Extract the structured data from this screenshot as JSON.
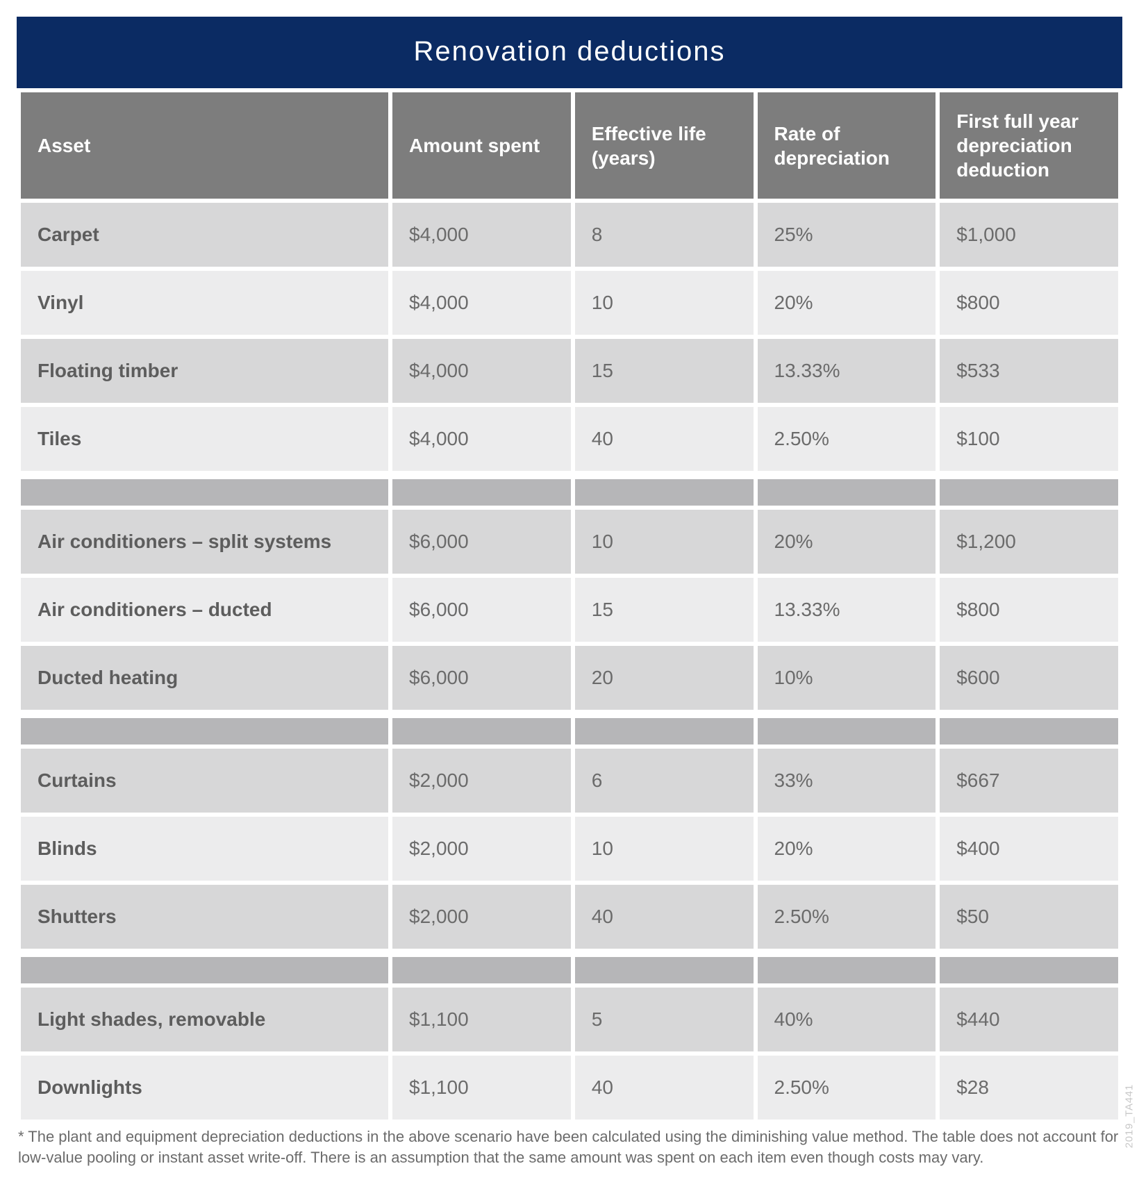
{
  "title": "Renovation deductions",
  "columns": [
    "Asset",
    "Amount spent",
    "Effective life (years)",
    "Rate of depreciation",
    "First full year depreciation deduction"
  ],
  "rows": [
    {
      "type": "data",
      "shade": "a",
      "cells": [
        "Carpet",
        "$4,000",
        "8",
        "25%",
        "$1,000"
      ]
    },
    {
      "type": "data",
      "shade": "b",
      "cells": [
        "Vinyl",
        "$4,000",
        "10",
        "20%",
        "$800"
      ]
    },
    {
      "type": "data",
      "shade": "a",
      "cells": [
        "Floating timber",
        "$4,000",
        "15",
        "13.33%",
        "$533"
      ]
    },
    {
      "type": "data",
      "shade": "b",
      "cells": [
        "Tiles",
        "$4,000",
        "40",
        "2.50%",
        "$100"
      ]
    },
    {
      "type": "separator"
    },
    {
      "type": "data",
      "shade": "a",
      "cells": [
        "Air conditioners – split systems",
        "$6,000",
        "10",
        "20%",
        "$1,200"
      ]
    },
    {
      "type": "data",
      "shade": "b",
      "cells": [
        "Air conditioners – ducted",
        "$6,000",
        "15",
        "13.33%",
        "$800"
      ]
    },
    {
      "type": "data",
      "shade": "a",
      "cells": [
        "Ducted heating",
        "$6,000",
        "20",
        "10%",
        "$600"
      ]
    },
    {
      "type": "separator"
    },
    {
      "type": "data",
      "shade": "a",
      "cells": [
        "Curtains",
        "$2,000",
        "6",
        "33%",
        "$667"
      ]
    },
    {
      "type": "data",
      "shade": "b",
      "cells": [
        "Blinds",
        "$2,000",
        "10",
        "20%",
        "$400"
      ]
    },
    {
      "type": "data",
      "shade": "a",
      "cells": [
        "Shutters",
        "$2,000",
        "40",
        "2.50%",
        "$50"
      ]
    },
    {
      "type": "separator"
    },
    {
      "type": "data",
      "shade": "a",
      "cells": [
        "Light shades, removable",
        "$1,100",
        "5",
        "40%",
        "$440"
      ]
    },
    {
      "type": "data",
      "shade": "b",
      "cells": [
        "Downlights",
        "$1,100",
        "40",
        "2.50%",
        "$28"
      ]
    }
  ],
  "footnote": "* The plant and equipment depreciation deductions in the above scenario have been calculated using the diminishing value method. The table does not account for low-value pooling or instant asset write-off. There is an assumption that the same amount was spent on each item even though costs may vary.",
  "side_code": "2019_TA441",
  "colors": {
    "title_bg": "#0b2b63",
    "header_bg": "#7d7d7d",
    "shade_a": "#d7d7d8",
    "shade_b": "#ececed",
    "separator": "#b6b6b8",
    "text": "#5d5d5d"
  }
}
